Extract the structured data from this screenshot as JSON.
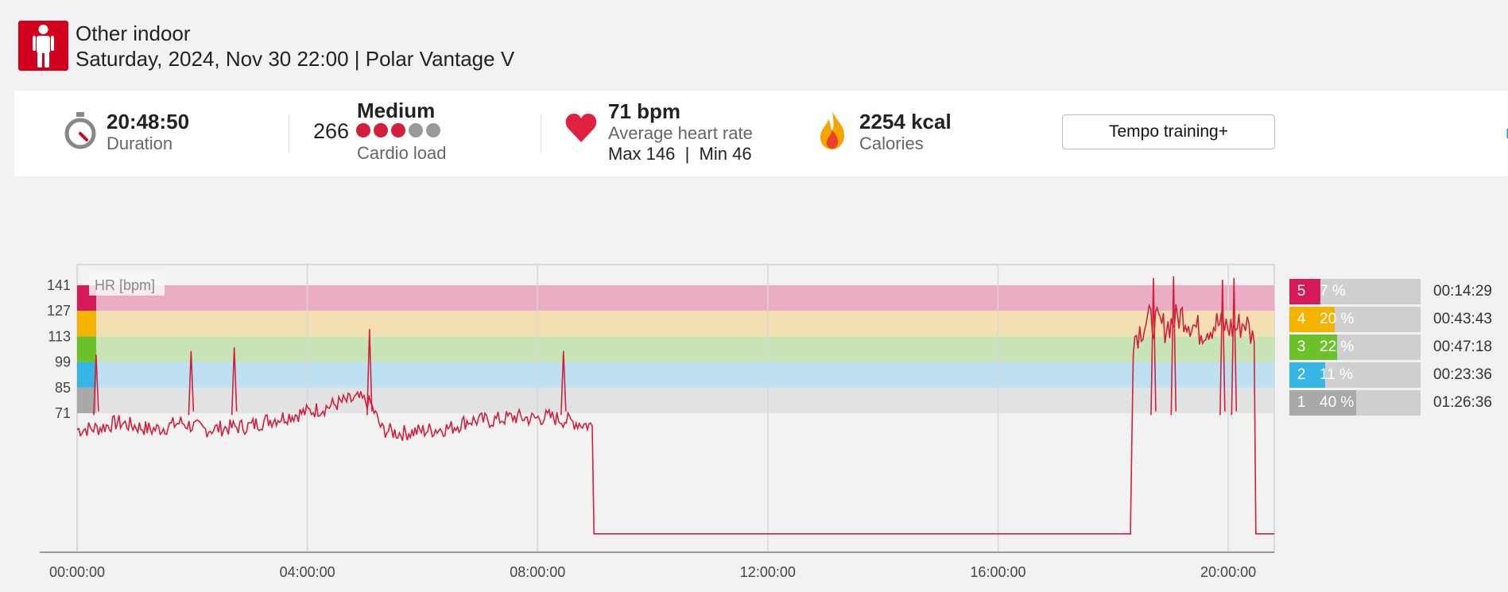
{
  "header": {
    "sport": "Other indoor",
    "datetime": "Saturday, 2024, Nov 30 22:00 | Polar Vantage V",
    "sport_icon": "person-standing-icon",
    "accent_color": "#d1001f"
  },
  "summary": {
    "duration": {
      "value": "20:48:50",
      "label": "Duration",
      "icon": "stopwatch-icon"
    },
    "cardio": {
      "score": "266",
      "level": "Medium",
      "label": "Cardio load",
      "filled_dots": 3,
      "total_dots": 5
    },
    "heart": {
      "value": "71 bpm",
      "label": "Average heart rate",
      "minmax": "Max 146  |  Min 46",
      "icon": "heart-icon"
    },
    "calories": {
      "value": "2254 kcal",
      "label": "Calories",
      "icon": "flame-icon"
    },
    "tempo_button": "Tempo training+",
    "more_link": "m"
  },
  "zones": [
    {
      "zone": "5",
      "percent": "7 %",
      "fraction": 0.07,
      "time": "00:14:29",
      "color": "#d6195a"
    },
    {
      "zone": "4",
      "percent": "20 %",
      "fraction": 0.2,
      "time": "00:43:43",
      "color": "#f4b300"
    },
    {
      "zone": "3",
      "percent": "22 %",
      "fraction": 0.22,
      "time": "00:47:18",
      "color": "#6cc12b"
    },
    {
      "zone": "2",
      "percent": "11 %",
      "fraction": 0.11,
      "time": "00:23:36",
      "color": "#37b6e5"
    },
    {
      "zone": "1",
      "percent": "40 %",
      "fraction": 0.4,
      "time": "01:26:36",
      "color": "#a9a9a9"
    }
  ],
  "chart_data": {
    "type": "line",
    "series_label": "HR [bpm]",
    "y_ticks": [
      141,
      127,
      113,
      99,
      85,
      71
    ],
    "x_ticks": [
      "00:00:00",
      "04:00:00",
      "08:00:00",
      "12:00:00",
      "16:00:00",
      "20:00:00"
    ],
    "x_range_hours": [
      0,
      20.8
    ],
    "zone_bands": [
      {
        "zone": 5,
        "from": 127,
        "to": 141,
        "color": "#eaadc3"
      },
      {
        "zone": 4,
        "from": 113,
        "to": 127,
        "color": "#f4dfb3"
      },
      {
        "zone": 3,
        "from": 99,
        "to": 113,
        "color": "#c8e3b6"
      },
      {
        "zone": 2,
        "from": 85,
        "to": 99,
        "color": "#bde1f0"
      },
      {
        "zone": 1,
        "from": 71,
        "to": 85,
        "color": "#e1e3e3"
      }
    ],
    "line_color": "#d21f3c",
    "hr_series": [
      [
        0,
        62
      ],
      [
        0.4,
        63
      ],
      [
        0.7,
        66
      ],
      [
        1.0,
        64
      ],
      [
        1.3,
        62
      ],
      [
        1.5,
        63
      ],
      [
        1.8,
        66
      ],
      [
        2.2,
        62
      ],
      [
        2.6,
        63
      ],
      [
        3.0,
        64
      ],
      [
        3.3,
        67
      ],
      [
        3.6,
        69
      ],
      [
        3.9,
        71
      ],
      [
        4.3,
        74
      ],
      [
        4.6,
        77
      ],
      [
        4.9,
        79
      ],
      [
        5.1,
        76
      ],
      [
        5.3,
        62
      ],
      [
        5.6,
        60
      ],
      [
        5.9,
        61
      ],
      [
        6.2,
        62
      ],
      [
        6.5,
        63
      ],
      [
        6.8,
        67
      ],
      [
        7.2,
        67
      ],
      [
        7.6,
        69
      ],
      [
        7.9,
        68
      ],
      [
        8.2,
        69
      ],
      [
        8.5,
        67
      ],
      [
        8.95,
        64
      ],
      [
        8.98,
        5
      ],
      [
        12.0,
        5
      ],
      [
        16.0,
        5
      ],
      [
        18.3,
        5
      ],
      [
        18.35,
        112
      ],
      [
        18.6,
        122
      ],
      [
        18.9,
        118
      ],
      [
        19.2,
        125
      ],
      [
        19.5,
        116
      ],
      [
        19.8,
        120
      ],
      [
        20.1,
        117
      ],
      [
        20.3,
        121
      ],
      [
        20.45,
        110
      ],
      [
        20.48,
        5
      ],
      [
        20.8,
        5
      ]
    ],
    "hr_spikes": [
      [
        0.33,
        103
      ],
      [
        1.98,
        105
      ],
      [
        2.73,
        107
      ],
      [
        5.08,
        117
      ],
      [
        8.45,
        105
      ],
      [
        18.7,
        145
      ],
      [
        19.05,
        146
      ],
      [
        19.9,
        144
      ],
      [
        20.1,
        145
      ]
    ]
  }
}
